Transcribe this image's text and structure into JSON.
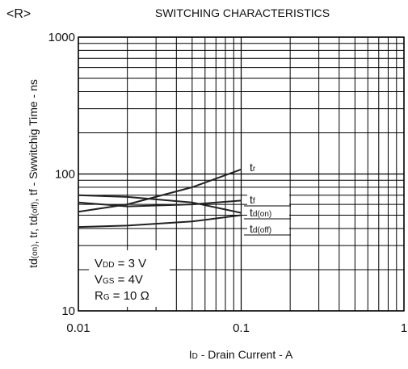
{
  "chart_data": {
    "type": "line",
    "revision_mark": "<R>",
    "title": "SWITCHING CHARACTERISTICS",
    "ylabel_parts": [
      "td",
      "(on)",
      ", tr, td",
      "(off)",
      ", tf - Swwitchig Time - ns"
    ],
    "xlabel_parts": [
      "I",
      "D",
      " - Drain Current - A"
    ],
    "log_x": true,
    "log_y": true,
    "grid": true,
    "xlim": [
      0.01,
      1
    ],
    "ylim": [
      10,
      1000
    ],
    "xticks": [
      0.01,
      0.1,
      1
    ],
    "yticks": [
      10,
      100,
      1000
    ],
    "x": [
      0.01,
      0.02,
      0.05,
      0.1
    ],
    "series": [
      {
        "name_parts": [
          "t",
          "r"
        ],
        "color": "#222222",
        "values": [
          53,
          60,
          80,
          108
        ]
      },
      {
        "name_parts": [
          "t",
          "f"
        ],
        "color": "#222222",
        "values": [
          62,
          58,
          60,
          64
        ]
      },
      {
        "name_parts": [
          "t",
          "d(on)"
        ],
        "color": "#222222",
        "values": [
          70,
          68,
          62,
          52
        ]
      },
      {
        "name_parts": [
          "t",
          "d(off)"
        ],
        "color": "#222222",
        "values": [
          41,
          42,
          45,
          50
        ]
      }
    ],
    "conditions": [
      [
        "V",
        "DD",
        " = 3 V"
      ],
      [
        "V",
        "GS",
        " = 4V"
      ],
      [
        "R",
        "G",
        " = 10 Ω"
      ]
    ]
  }
}
